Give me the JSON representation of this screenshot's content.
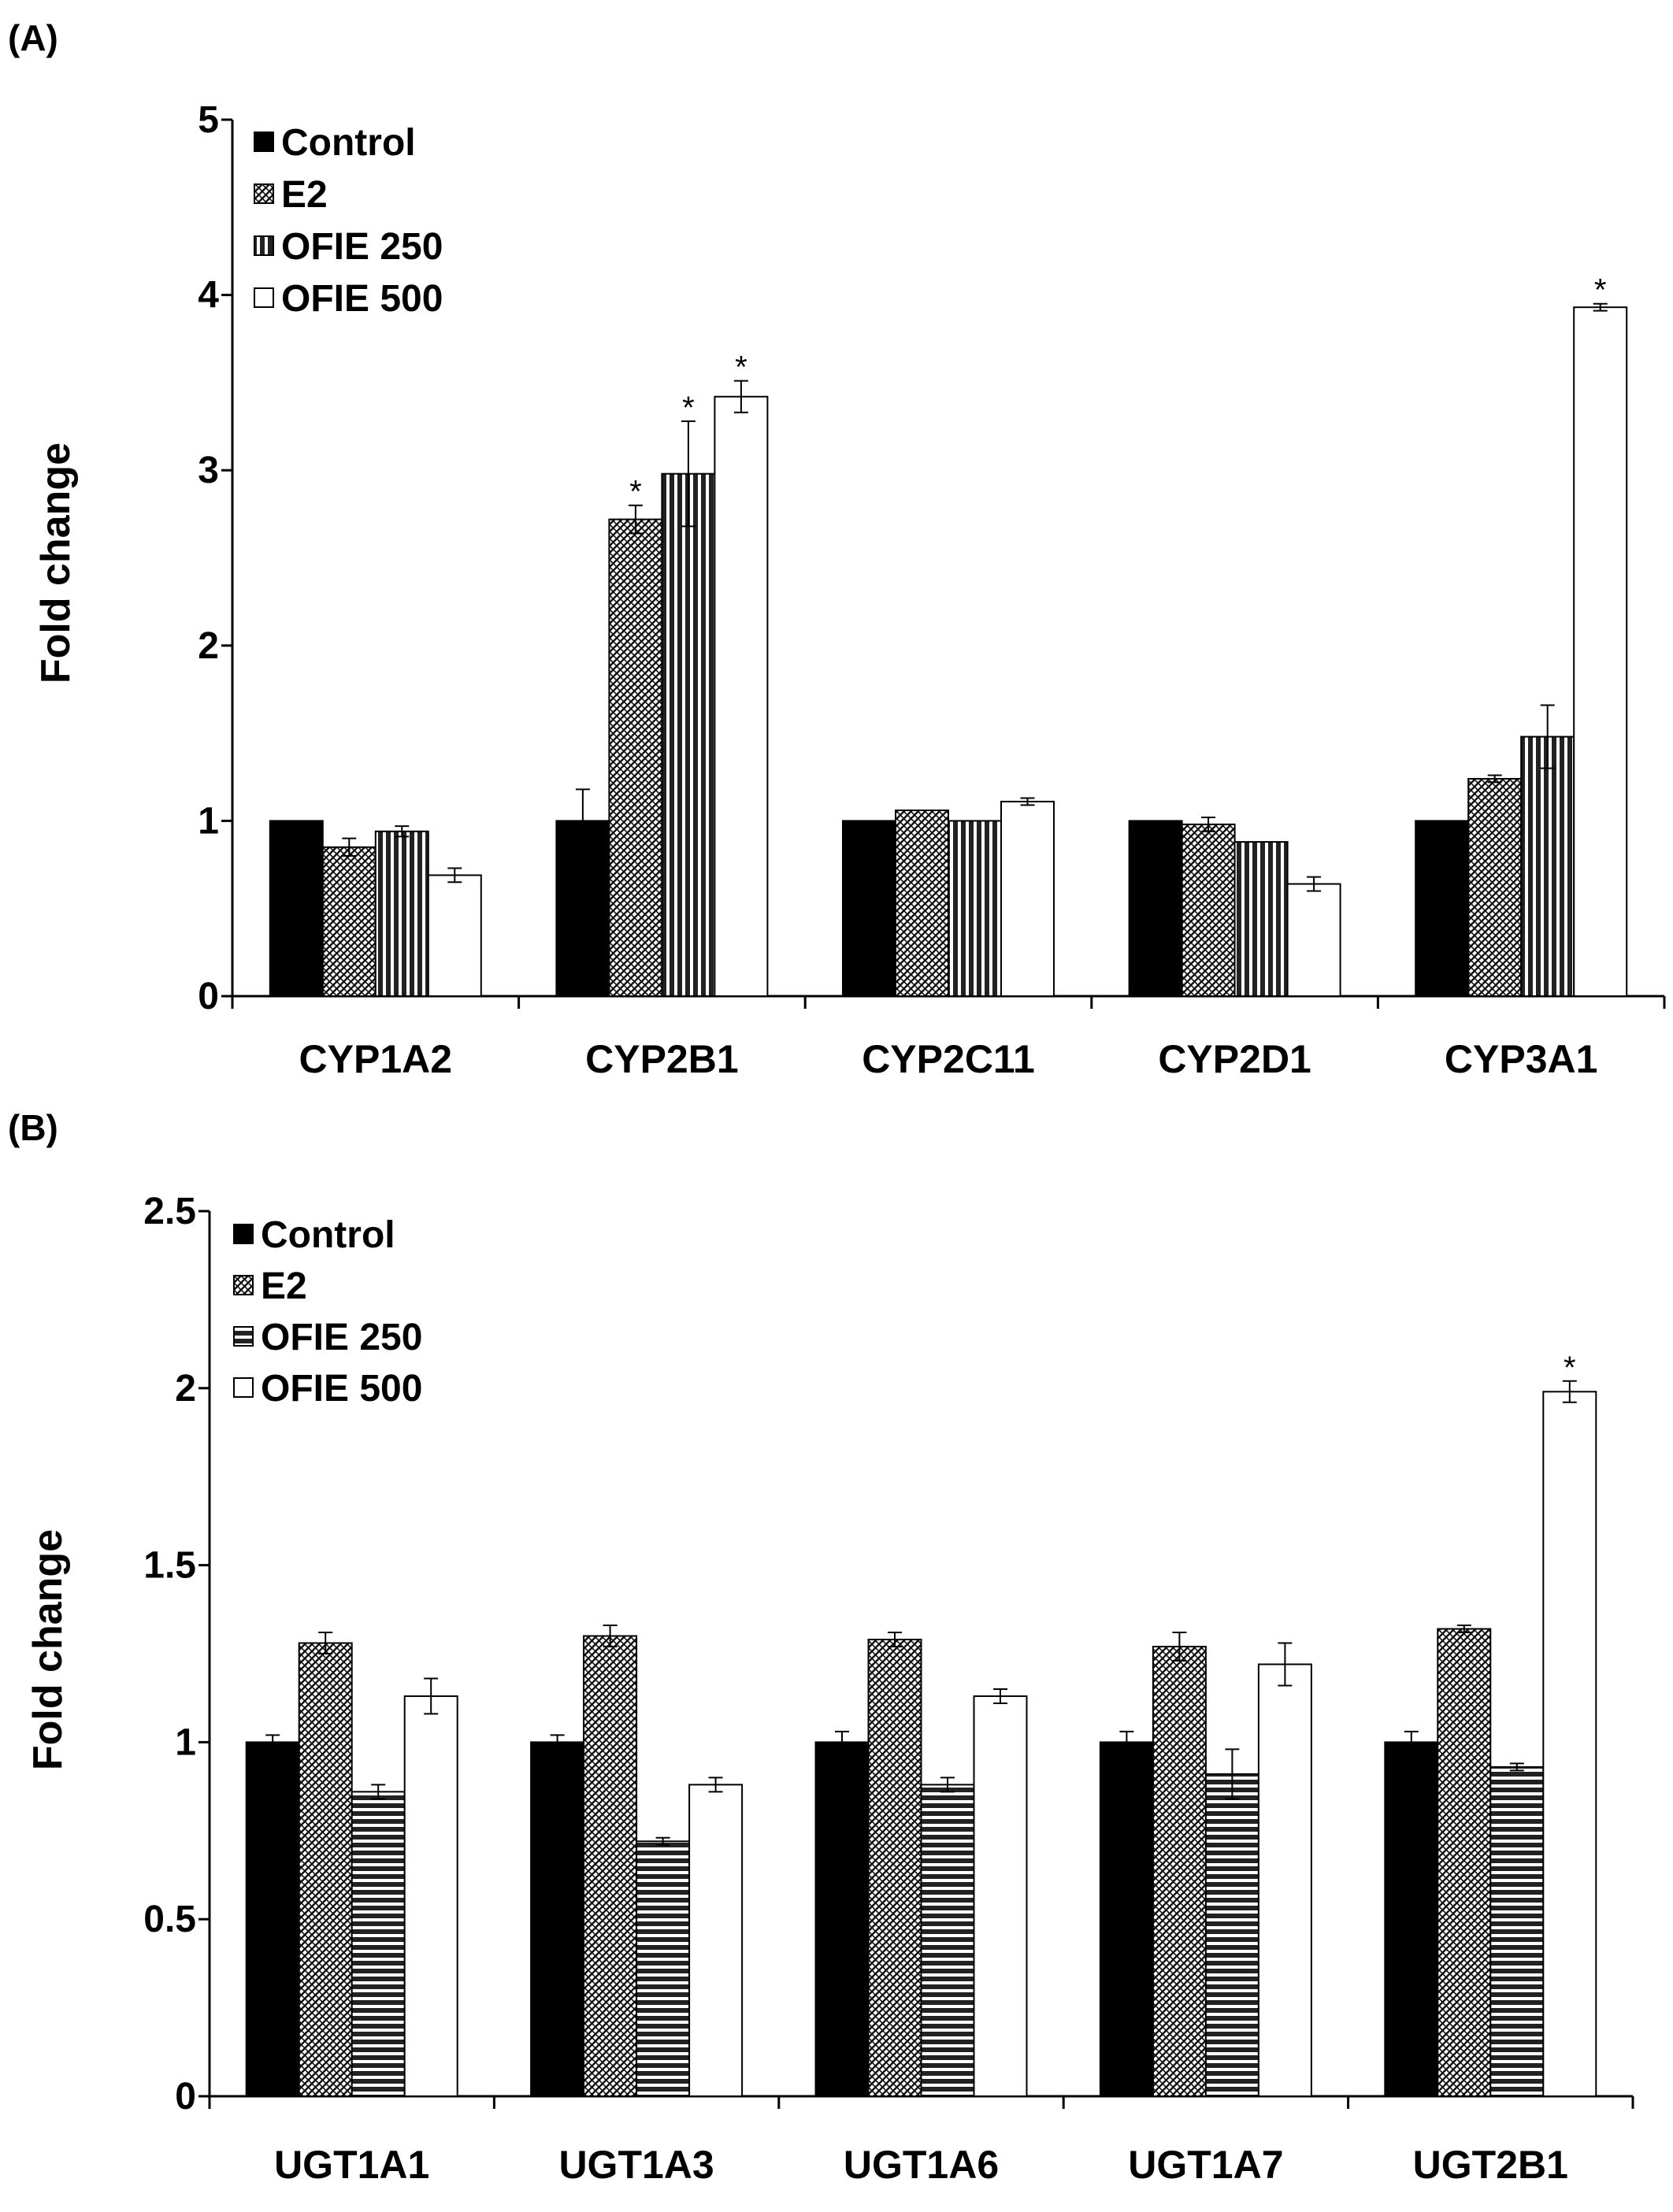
{
  "chart_data": [
    {
      "panel_label": "(A)",
      "type": "bar",
      "ylabel": "Fold change",
      "xlabel": "",
      "ylim": [
        0,
        5
      ],
      "yticks": [
        0,
        1,
        2,
        3,
        4,
        5
      ],
      "ytick_labels": [
        "0",
        "1",
        "2",
        "3",
        "4",
        "5"
      ],
      "categories": [
        "CYP1A2",
        "CYP2B1",
        "CYP2C11",
        "CYP2D1",
        "CYP3A1"
      ],
      "series": [
        {
          "name": "Control",
          "pattern": "solid",
          "values": [
            1.0,
            1.0,
            1.0,
            1.0,
            1.0
          ],
          "errors": [
            0.0,
            0.18,
            0.0,
            0.0,
            0.0
          ],
          "sig": [
            false,
            false,
            false,
            false,
            false
          ]
        },
        {
          "name": "E2",
          "pattern": "crosshatch",
          "values": [
            0.85,
            2.72,
            1.06,
            0.98,
            1.24
          ],
          "errors": [
            0.05,
            0.08,
            0.0,
            0.04,
            0.02
          ],
          "sig": [
            false,
            true,
            false,
            false,
            false
          ]
        },
        {
          "name": "OFIE 250",
          "pattern": "vertical",
          "values": [
            0.94,
            2.98,
            1.0,
            0.88,
            1.48
          ],
          "errors": [
            0.03,
            0.3,
            0.0,
            0.0,
            0.18
          ],
          "sig": [
            false,
            true,
            false,
            false,
            false
          ]
        },
        {
          "name": "OFIE 500",
          "pattern": "white",
          "values": [
            0.69,
            3.42,
            1.11,
            0.64,
            3.93
          ],
          "errors": [
            0.04,
            0.09,
            0.02,
            0.04,
            0.02
          ],
          "sig": [
            false,
            true,
            false,
            false,
            true
          ]
        }
      ],
      "significance_marker": "*",
      "legend": "top-left",
      "grid": false
    },
    {
      "panel_label": "(B)",
      "type": "bar",
      "ylabel": "Fold change",
      "xlabel": "",
      "ylim": [
        0,
        2.5
      ],
      "yticks": [
        0,
        0.5,
        1,
        1.5,
        2,
        2.5
      ],
      "ytick_labels": [
        "0",
        "0.5",
        "1",
        "1.5",
        "2",
        "2.5"
      ],
      "categories": [
        "UGT1A1",
        "UGT1A3",
        "UGT1A6",
        "UGT1A7",
        "UGT2B1"
      ],
      "series": [
        {
          "name": "Control",
          "pattern": "solid",
          "values": [
            1.0,
            1.0,
            1.0,
            1.0,
            1.0
          ],
          "errors": [
            0.02,
            0.02,
            0.03,
            0.03,
            0.03
          ],
          "sig": [
            false,
            false,
            false,
            false,
            false
          ]
        },
        {
          "name": "E2",
          "pattern": "crosshatch",
          "values": [
            1.28,
            1.3,
            1.29,
            1.27,
            1.32
          ],
          "errors": [
            0.03,
            0.03,
            0.02,
            0.04,
            0.01
          ],
          "sig": [
            false,
            false,
            false,
            false,
            false
          ]
        },
        {
          "name": "OFIE 250",
          "pattern": "horizontal",
          "values": [
            0.86,
            0.72,
            0.88,
            0.91,
            0.93
          ],
          "errors": [
            0.02,
            0.01,
            0.02,
            0.07,
            0.01
          ],
          "sig": [
            false,
            false,
            false,
            false,
            false
          ]
        },
        {
          "name": "OFIE 500",
          "pattern": "white",
          "values": [
            1.13,
            0.88,
            1.13,
            1.22,
            1.99
          ],
          "errors": [
            0.05,
            0.02,
            0.02,
            0.06,
            0.03
          ],
          "sig": [
            false,
            false,
            false,
            false,
            true
          ]
        }
      ],
      "significance_marker": "*",
      "legend": "top-left",
      "grid": false
    }
  ]
}
